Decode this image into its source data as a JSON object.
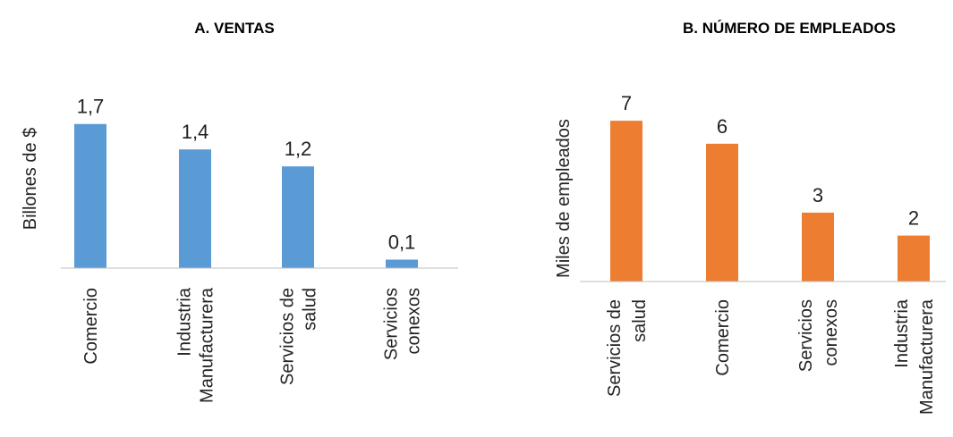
{
  "chart_data": [
    {
      "type": "bar",
      "title": "A. VENTAS",
      "ylabel": "Billones de $",
      "xlabel": "",
      "categories": [
        [
          "Comercio"
        ],
        [
          "Industria",
          "Manufacturera"
        ],
        [
          "Servicios de",
          "salud"
        ],
        [
          "Servicios",
          "conexos"
        ]
      ],
      "values": [
        1.7,
        1.4,
        1.2,
        0.1
      ],
      "data_labels": [
        "1,7",
        "1,4",
        "1,2",
        "0,1"
      ],
      "ylim": [
        0,
        1.75
      ],
      "color": "#5b9bd5",
      "grid": false
    },
    {
      "type": "bar",
      "title": "B. NÚMERO DE EMPLEADOS",
      "ylabel": "Miles de empleados",
      "xlabel": "",
      "categories": [
        [
          "Servicios de",
          "salud"
        ],
        [
          "Comercio"
        ],
        [
          "Servicios",
          "conexos"
        ],
        [
          "Industria",
          "Manufacturera"
        ]
      ],
      "values": [
        7,
        6,
        3,
        2
      ],
      "data_labels": [
        "7",
        "6",
        "3",
        "2"
      ],
      "ylim": [
        0,
        7.2
      ],
      "color": "#ed7d31",
      "grid": false
    }
  ]
}
